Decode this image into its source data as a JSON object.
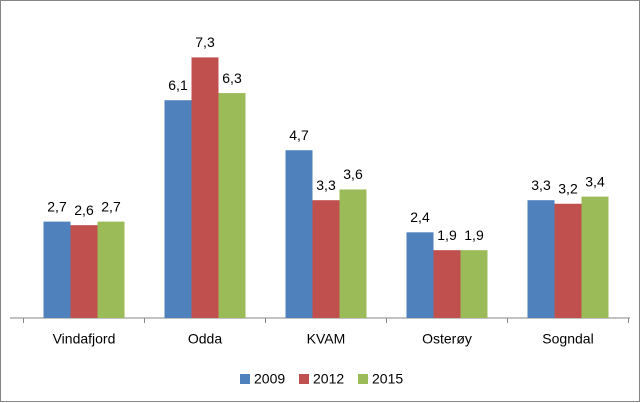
{
  "chart_data": {
    "type": "bar",
    "categories": [
      "Vindafjord",
      "Odda",
      "KVAM",
      "Osterøy",
      "Sogndal"
    ],
    "series": [
      {
        "name": "2009",
        "color": "#4f81bd",
        "values": [
          2.7,
          6.1,
          4.7,
          2.4,
          3.3
        ],
        "value_labels": [
          "2,7",
          "6,1",
          "4,7",
          "2,4",
          "3,3"
        ]
      },
      {
        "name": "2012",
        "color": "#c0504d",
        "values": [
          2.6,
          7.3,
          3.3,
          1.9,
          3.2
        ],
        "value_labels": [
          "2,6",
          "7,3",
          "3,3",
          "1,9",
          "3,2"
        ]
      },
      {
        "name": "2015",
        "color": "#9bbb59",
        "values": [
          2.7,
          6.3,
          3.6,
          1.9,
          3.4
        ],
        "value_labels": [
          "2,7",
          "6,3",
          "3,6",
          "1,9",
          "3,4"
        ]
      }
    ],
    "legend": "bottom"
  }
}
